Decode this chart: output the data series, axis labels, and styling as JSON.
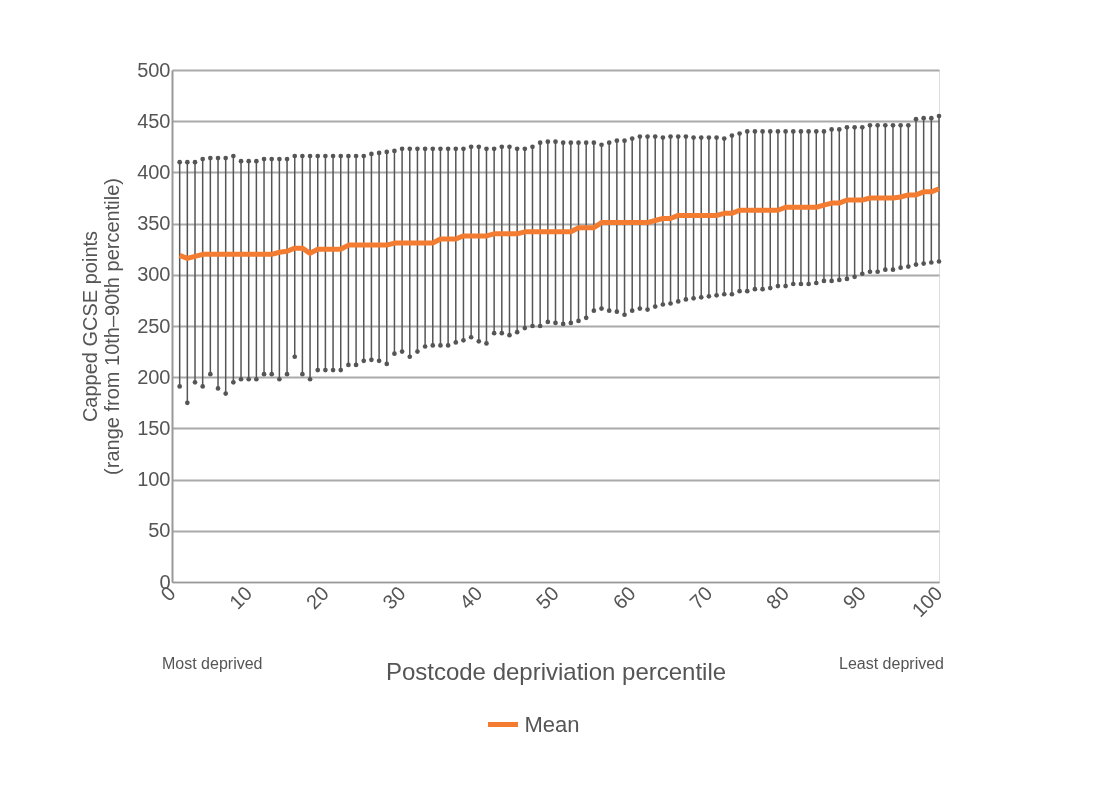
{
  "chart_data": {
    "type": "line",
    "xlabel": "Postcode depriviation percentile",
    "ylabel": "Capped GCSE points\n(range from 10th–90th percentile)",
    "annotations": [
      "Most deprived",
      "Least deprived"
    ],
    "x": [
      1,
      2,
      3,
      4,
      5,
      6,
      7,
      8,
      9,
      10,
      11,
      12,
      13,
      14,
      15,
      16,
      17,
      18,
      19,
      20,
      21,
      22,
      23,
      24,
      25,
      26,
      27,
      28,
      29,
      30,
      31,
      32,
      33,
      34,
      35,
      36,
      37,
      38,
      39,
      40,
      41,
      42,
      43,
      44,
      45,
      46,
      47,
      48,
      49,
      50,
      51,
      52,
      53,
      54,
      55,
      56,
      57,
      58,
      59,
      60,
      61,
      62,
      63,
      64,
      65,
      66,
      67,
      68,
      69,
      70,
      71,
      72,
      73,
      74,
      75,
      76,
      77,
      78,
      79,
      80,
      81,
      82,
      83,
      84,
      85,
      86,
      87,
      88,
      89,
      90,
      91,
      92,
      93,
      94,
      95,
      96,
      97,
      98,
      99,
      100
    ],
    "xlim": [
      0,
      100
    ],
    "xticks": [
      0,
      10,
      20,
      30,
      40,
      50,
      60,
      70,
      80,
      90,
      100
    ],
    "ylim": [
      0,
      500
    ],
    "yticks": [
      0,
      50,
      100,
      150,
      200,
      250,
      300,
      350,
      400,
      450,
      500
    ],
    "grid": "y",
    "legend": "bottom",
    "marker": "none",
    "line_style": "solid",
    "series": [
      {
        "name": "Mean",
        "color": "#f47c30",
        "values": [
          319,
          316,
          318,
          320,
          320,
          320,
          320,
          320,
          320,
          320,
          320,
          320,
          320,
          322,
          323,
          326,
          326,
          321,
          325,
          325,
          325,
          325,
          329,
          329,
          329,
          329,
          329,
          329,
          331,
          331,
          331,
          331,
          331,
          331,
          335,
          335,
          335,
          338,
          338,
          338,
          338,
          340,
          340,
          340,
          340,
          342,
          342,
          342,
          342,
          342,
          342,
          342,
          346,
          346,
          346,
          351,
          351,
          351,
          351,
          351,
          351,
          351,
          353,
          355,
          355,
          358,
          358,
          358,
          358,
          358,
          358,
          360,
          360,
          363,
          363,
          363,
          363,
          363,
          363,
          366,
          366,
          366,
          366,
          366,
          368,
          370,
          370,
          373,
          373,
          373,
          375,
          375,
          375,
          375,
          376,
          378,
          378,
          381,
          381,
          384
        ],
        "errors": [
          [
            191,
            410
          ],
          [
            175,
            410
          ],
          [
            195,
            410
          ],
          [
            191,
            413
          ],
          [
            203,
            414
          ],
          [
            189,
            414
          ],
          [
            184,
            414
          ],
          [
            195,
            416
          ],
          [
            198,
            411
          ],
          [
            198,
            411
          ],
          [
            198,
            411
          ],
          [
            203,
            413
          ],
          [
            203,
            413
          ],
          [
            198,
            413
          ],
          [
            203,
            413
          ],
          [
            220,
            416
          ],
          [
            203,
            416
          ],
          [
            198,
            416
          ],
          [
            207,
            416
          ],
          [
            207,
            416
          ],
          [
            207,
            416
          ],
          [
            207,
            416
          ],
          [
            212,
            416
          ],
          [
            212,
            416
          ],
          [
            216,
            416
          ],
          [
            217,
            418
          ],
          [
            216,
            419
          ],
          [
            213,
            420
          ],
          [
            223,
            421
          ],
          [
            225,
            423
          ],
          [
            220,
            423
          ],
          [
            225,
            423
          ],
          [
            230,
            423
          ],
          [
            231,
            423
          ],
          [
            231,
            423
          ],
          [
            231,
            423
          ],
          [
            234,
            423
          ],
          [
            236,
            423
          ],
          [
            239,
            425
          ],
          [
            235,
            425
          ],
          [
            233,
            423
          ],
          [
            243,
            423
          ],
          [
            243,
            425
          ],
          [
            241,
            425
          ],
          [
            244,
            423
          ],
          [
            248,
            423
          ],
          [
            250,
            425
          ],
          [
            250,
            429
          ],
          [
            254,
            430
          ],
          [
            253,
            430
          ],
          [
            252,
            429
          ],
          [
            253,
            429
          ],
          [
            255,
            429
          ],
          [
            258,
            429
          ],
          [
            265,
            429
          ],
          [
            267,
            427
          ],
          [
            265,
            429
          ],
          [
            264,
            431
          ],
          [
            261,
            431
          ],
          [
            265,
            433
          ],
          [
            267,
            435
          ],
          [
            266,
            435
          ],
          [
            269,
            435
          ],
          [
            271,
            434
          ],
          [
            272,
            435
          ],
          [
            274,
            435
          ],
          [
            276,
            435
          ],
          [
            277,
            434
          ],
          [
            278,
            434
          ],
          [
            279,
            434
          ],
          [
            280,
            434
          ],
          [
            281,
            433
          ],
          [
            281,
            436
          ],
          [
            284,
            438
          ],
          [
            284,
            440
          ],
          [
            286,
            440
          ],
          [
            286,
            440
          ],
          [
            287,
            440
          ],
          [
            289,
            440
          ],
          [
            289,
            440
          ],
          [
            291,
            440
          ],
          [
            291,
            440
          ],
          [
            291,
            440
          ],
          [
            292,
            440
          ],
          [
            294,
            440
          ],
          [
            294,
            442
          ],
          [
            295,
            442
          ],
          [
            296,
            444
          ],
          [
            298,
            444
          ],
          [
            301,
            444
          ],
          [
            303,
            446
          ],
          [
            303,
            446
          ],
          [
            305,
            446
          ],
          [
            305,
            446
          ],
          [
            307,
            446
          ],
          [
            308,
            446
          ],
          [
            310,
            452
          ],
          [
            311,
            453
          ],
          [
            312,
            453
          ],
          [
            313,
            455
          ]
        ]
      }
    ]
  }
}
